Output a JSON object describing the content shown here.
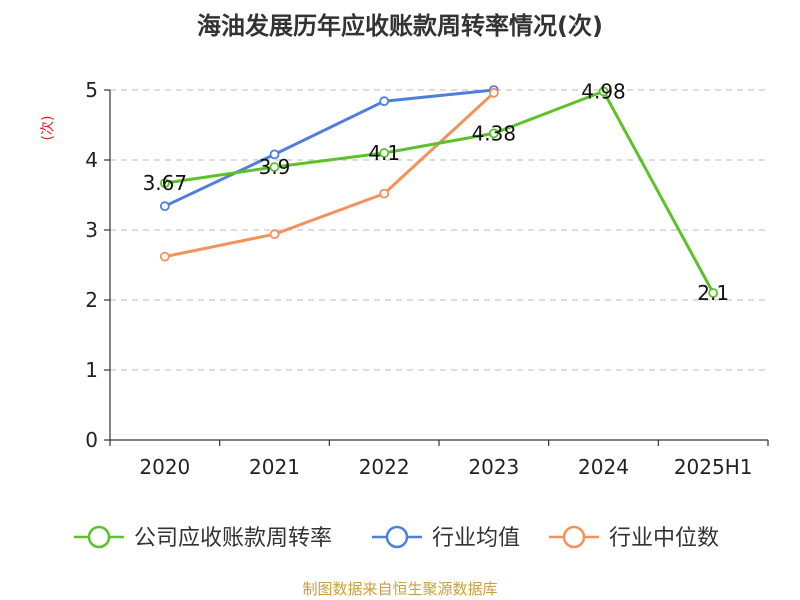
{
  "chart_data": {
    "type": "line",
    "title": "海油发展历年应收账款周转率情况(次)",
    "ylabel": "(次)",
    "xlabel": "",
    "categories": [
      "2020",
      "2021",
      "2022",
      "2023",
      "2024",
      "2025H1"
    ],
    "ylim": [
      0,
      5
    ],
    "yticks": [
      0,
      1,
      2,
      3,
      4,
      5
    ],
    "grid": true,
    "legend_position": "bottom",
    "series": [
      {
        "name": "公司应收账款周转率",
        "color": "#5dc22a",
        "values": [
          3.67,
          3.9,
          4.1,
          4.38,
          4.98,
          2.1
        ],
        "labels": [
          "3.67",
          "3.9",
          "4.1",
          "4.38",
          "4.98",
          "2.1"
        ]
      },
      {
        "name": "行业均值",
        "color": "#4f7fdc",
        "values": [
          3.34,
          4.08,
          4.84,
          5.0,
          null,
          null
        ]
      },
      {
        "name": "行业中位数",
        "color": "#f3925a",
        "values": [
          2.62,
          2.94,
          3.52,
          4.96,
          null,
          null
        ]
      }
    ],
    "source": "制图数据来自恒生聚源数据库"
  }
}
